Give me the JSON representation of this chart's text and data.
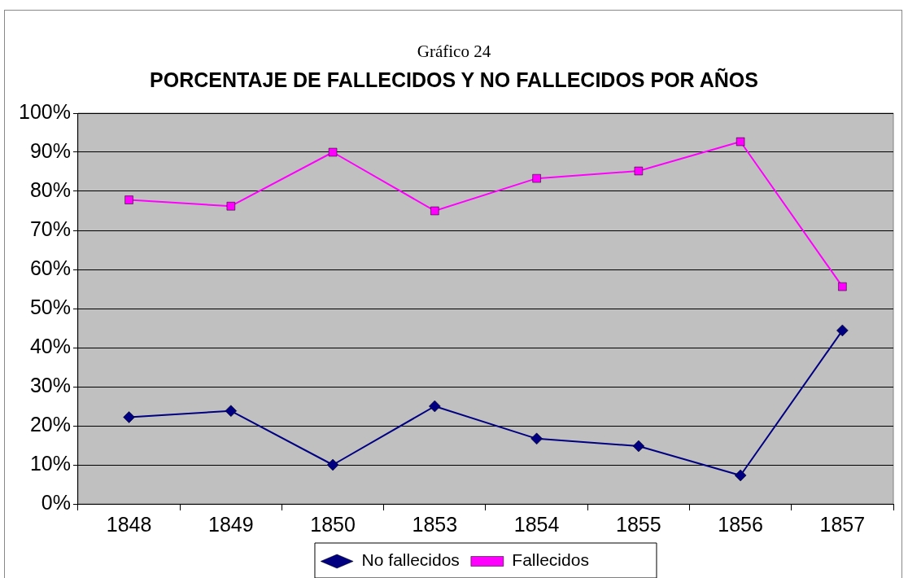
{
  "chart_data": {
    "type": "line",
    "subtitle": "Gráfico 24",
    "title": "PORCENTAJE DE FALLECIDOS Y NO FALLECIDOS POR AÑOS",
    "categories": [
      "1848",
      "1849",
      "1850",
      "1853",
      "1854",
      "1855",
      "1856",
      "1857"
    ],
    "series": [
      {
        "name": "No fallecidos",
        "color": "#000080",
        "marker": "diamond",
        "values": [
          22.2,
          23.8,
          10,
          25,
          16.7,
          14.8,
          7.3,
          44.4
        ]
      },
      {
        "name": "Fallecidos",
        "color": "#ff00ff",
        "marker": "square",
        "values": [
          77.8,
          76.2,
          90,
          75,
          83.3,
          85.2,
          92.7,
          55.6
        ]
      }
    ],
    "ylim": [
      0,
      100
    ],
    "yticks": [
      {
        "value": 0,
        "label": "0%"
      },
      {
        "value": 10,
        "label": "10%"
      },
      {
        "value": 20,
        "label": "20%"
      },
      {
        "value": 30,
        "label": "30%"
      },
      {
        "value": 40,
        "label": "40%"
      },
      {
        "value": 50,
        "label": "50%"
      },
      {
        "value": 60,
        "label": "60%"
      },
      {
        "value": 70,
        "label": "70%"
      },
      {
        "value": 80,
        "label": "80%"
      },
      {
        "value": 90,
        "label": "90%"
      },
      {
        "value": 100,
        "label": "100%"
      }
    ],
    "grid": "y",
    "legend": "bottom",
    "line_style": "solid"
  }
}
